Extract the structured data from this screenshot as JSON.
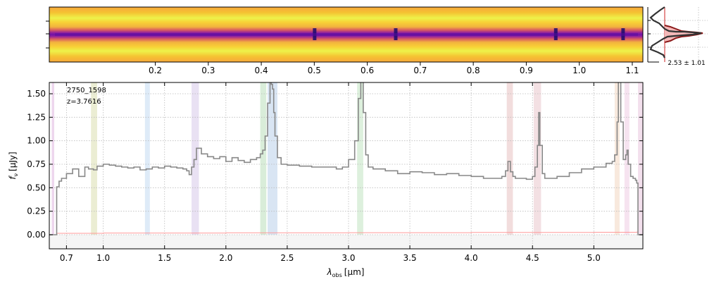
{
  "chart_data": [
    {
      "type": "heatmap",
      "panel": "2d-spectrum",
      "top_axis_ticks": [
        "0.2",
        "0.3",
        "0.4",
        "0.5",
        "0.6",
        "0.7",
        "0.8",
        "0.9",
        "1.0",
        "1.1"
      ],
      "top_axis_tick_values": [
        0.2,
        0.3,
        0.4,
        0.5,
        0.6,
        0.7,
        0.8,
        0.9,
        1.0,
        1.1
      ],
      "x_range": [
        0.0,
        1.12
      ],
      "colormap": "plasma",
      "absorption_like_dark_features_at": [
        0.5,
        0.653,
        0.955,
        1.082
      ]
    },
    {
      "type": "line",
      "panel": "cross-dispersion-profile",
      "annotation": "2.53 ± 1.01",
      "center": 2.53,
      "width": 1.01,
      "colors": {
        "data": "#333333",
        "model": "#cc2222",
        "fill": "#f4b8b8"
      }
    },
    {
      "type": "line",
      "panel": "1d-spectrum",
      "object_id": "2750_1598",
      "redshift_label": "z=3.7616",
      "xlabel_math": "λ",
      "xlabel_sub": "obs",
      "xlabel_unit": "[μm]",
      "ylabel_math": "f",
      "ylabel_sub": "ν",
      "ylabel_unit": "[μJy]",
      "ylim": [
        -0.15,
        1.62
      ],
      "y_ticks": [
        "0.00",
        "0.25",
        "0.50",
        "0.75",
        "1.00",
        "1.25",
        "1.50"
      ],
      "y_tick_values": [
        0.0,
        0.25,
        0.5,
        0.75,
        1.0,
        1.25,
        1.5
      ],
      "x_range": [
        0.56,
        5.4
      ],
      "x_ticks": [
        "0.7",
        "1.0",
        "1.5",
        "2.0",
        "2.5",
        "3.0",
        "3.5",
        "4.0",
        "4.5",
        "5.0"
      ],
      "x_tick_values": [
        0.7,
        1.0,
        1.5,
        2.0,
        2.5,
        3.0,
        3.5,
        4.0,
        4.5,
        5.0
      ],
      "grid": true,
      "colors": {
        "spectrum": "#888888",
        "error": "#ff9999",
        "grid": "#bbbbbb"
      },
      "line_bands": [
        {
          "x0": 0.58,
          "x1": 0.6,
          "color": "#e8cce8"
        },
        {
          "x0": 0.9,
          "x1": 0.95,
          "color": "#e6e8c8"
        },
        {
          "x0": 1.34,
          "x1": 1.38,
          "color": "#d6e6f6"
        },
        {
          "x0": 1.72,
          "x1": 1.78,
          "color": "#e4daf0"
        },
        {
          "x0": 2.28,
          "x1": 2.33,
          "color": "#cfe8cf"
        },
        {
          "x0": 2.34,
          "x1": 2.42,
          "color": "#cfdff0"
        },
        {
          "x0": 3.07,
          "x1": 3.12,
          "color": "#d4ecd4"
        },
        {
          "x0": 4.29,
          "x1": 4.34,
          "color": "#efd4d4"
        },
        {
          "x0": 4.51,
          "x1": 4.57,
          "color": "#f0d8dc"
        },
        {
          "x0": 5.17,
          "x1": 5.21,
          "color": "#f6e4d4"
        },
        {
          "x0": 5.25,
          "x1": 5.29,
          "color": "#f4dcec"
        },
        {
          "x0": 5.36,
          "x1": 5.4,
          "color": "#f0d8e8"
        }
      ],
      "spectrum": {
        "x": [
          0.56,
          0.6,
          0.62,
          0.64,
          0.66,
          0.7,
          0.75,
          0.8,
          0.85,
          0.88,
          0.92,
          0.95,
          1.0,
          1.05,
          1.1,
          1.15,
          1.2,
          1.25,
          1.3,
          1.35,
          1.4,
          1.45,
          1.5,
          1.55,
          1.6,
          1.65,
          1.68,
          1.7,
          1.72,
          1.74,
          1.76,
          1.8,
          1.85,
          1.9,
          1.95,
          2.0,
          2.05,
          2.1,
          2.15,
          2.2,
          2.25,
          2.28,
          2.3,
          2.32,
          2.34,
          2.36,
          2.37,
          2.38,
          2.39,
          2.4,
          2.42,
          2.45,
          2.5,
          2.6,
          2.7,
          2.8,
          2.9,
          2.95,
          3.0,
          3.05,
          3.08,
          3.1,
          3.11,
          3.12,
          3.14,
          3.16,
          3.2,
          3.3,
          3.4,
          3.5,
          3.6,
          3.7,
          3.8,
          3.9,
          4.0,
          4.1,
          4.2,
          4.25,
          4.28,
          4.3,
          4.32,
          4.34,
          4.36,
          4.4,
          4.45,
          4.5,
          4.52,
          4.54,
          4.55,
          4.56,
          4.58,
          4.6,
          4.7,
          4.8,
          4.9,
          5.0,
          5.1,
          5.15,
          5.17,
          5.19,
          5.2,
          5.21,
          5.22,
          5.24,
          5.26,
          5.27,
          5.28,
          5.3,
          5.32,
          5.34,
          5.35,
          5.36,
          5.4
        ],
        "y": [
          0.0,
          0.0,
          0.51,
          0.57,
          0.6,
          0.65,
          0.7,
          0.62,
          0.72,
          0.7,
          0.69,
          0.73,
          0.75,
          0.74,
          0.73,
          0.72,
          0.71,
          0.72,
          0.69,
          0.7,
          0.72,
          0.71,
          0.73,
          0.72,
          0.71,
          0.7,
          0.68,
          0.64,
          0.72,
          0.8,
          0.92,
          0.86,
          0.83,
          0.81,
          0.83,
          0.78,
          0.82,
          0.79,
          0.77,
          0.8,
          0.82,
          0.86,
          0.9,
          1.05,
          1.4,
          1.65,
          1.6,
          1.55,
          1.3,
          1.05,
          0.82,
          0.75,
          0.74,
          0.73,
          0.72,
          0.72,
          0.7,
          0.72,
          0.8,
          1.0,
          1.45,
          1.65,
          1.65,
          1.3,
          0.85,
          0.72,
          0.7,
          0.68,
          0.65,
          0.67,
          0.66,
          0.64,
          0.65,
          0.63,
          0.62,
          0.6,
          0.6,
          0.62,
          0.68,
          0.78,
          0.67,
          0.62,
          0.6,
          0.6,
          0.59,
          0.62,
          0.72,
          0.95,
          1.3,
          0.95,
          0.65,
          0.6,
          0.62,
          0.66,
          0.7,
          0.72,
          0.76,
          0.78,
          0.85,
          1.2,
          1.65,
          1.65,
          1.2,
          0.8,
          0.85,
          0.9,
          0.75,
          0.62,
          0.6,
          0.58,
          0.55,
          0.0,
          0.0
        ]
      },
      "error": {
        "x": [
          0.56,
          0.6,
          0.62,
          1.0,
          2.0,
          3.0,
          4.0,
          5.0,
          5.35,
          5.36,
          5.4
        ],
        "y": [
          0.0,
          0.0,
          0.015,
          0.018,
          0.02,
          0.022,
          0.024,
          0.026,
          0.028,
          0.0,
          0.0
        ]
      }
    }
  ]
}
